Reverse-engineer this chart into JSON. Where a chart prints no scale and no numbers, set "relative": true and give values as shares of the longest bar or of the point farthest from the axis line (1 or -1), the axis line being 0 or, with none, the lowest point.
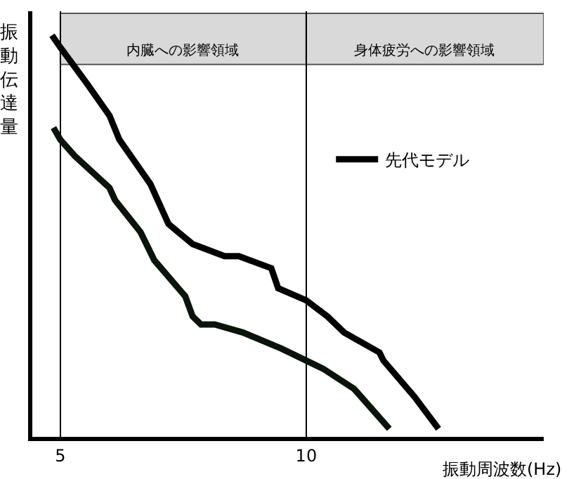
{
  "chart_data": {
    "type": "line",
    "relative": true,
    "xlabel": "振動周波数(Hz)",
    "ylabel": "振動伝達量",
    "xlim": [
      4.43,
      14.83
    ],
    "xticks": [
      5,
      10
    ],
    "grid": "x",
    "legend": "right",
    "marker": "none",
    "line_style": "solid",
    "bands": [
      {
        "axis": "x",
        "from": 5,
        "to": 10,
        "label": "内臓への影響領域",
        "color": "#d9d9d9"
      },
      {
        "axis": "x",
        "from": 10,
        "to": 14.83,
        "label": "身体疲労への影響領域",
        "color": "#d9d9d9"
      }
    ],
    "series": [
      {
        "name": "先代モデル",
        "color": "#000000",
        "x": [
          4.83,
          5.0,
          5.54,
          6.0,
          6.2,
          6.83,
          7.2,
          7.69,
          8.34,
          8.63,
          9.29,
          9.43,
          10.0,
          10.43,
          10.77,
          11.49,
          11.57,
          12.2,
          12.69
        ],
        "values": [
          1.0,
          0.97,
          0.88,
          0.8,
          0.74,
          0.63,
          0.53,
          0.48,
          0.45,
          0.45,
          0.42,
          0.37,
          0.34,
          0.3,
          0.26,
          0.21,
          0.19,
          0.1,
          0.02
        ]
      },
      {
        "color": "#0a140a",
        "x": [
          4.86,
          5.0,
          5.29,
          6.0,
          6.11,
          6.63,
          6.91,
          7.54,
          7.69,
          7.86,
          8.14,
          8.71,
          9.49,
          10.0,
          10.34,
          10.97,
          11.69
        ],
        "values": [
          0.77,
          0.74,
          0.7,
          0.62,
          0.59,
          0.51,
          0.44,
          0.35,
          0.3,
          0.28,
          0.28,
          0.26,
          0.22,
          0.19,
          0.17,
          0.12,
          0.02
        ]
      }
    ]
  }
}
